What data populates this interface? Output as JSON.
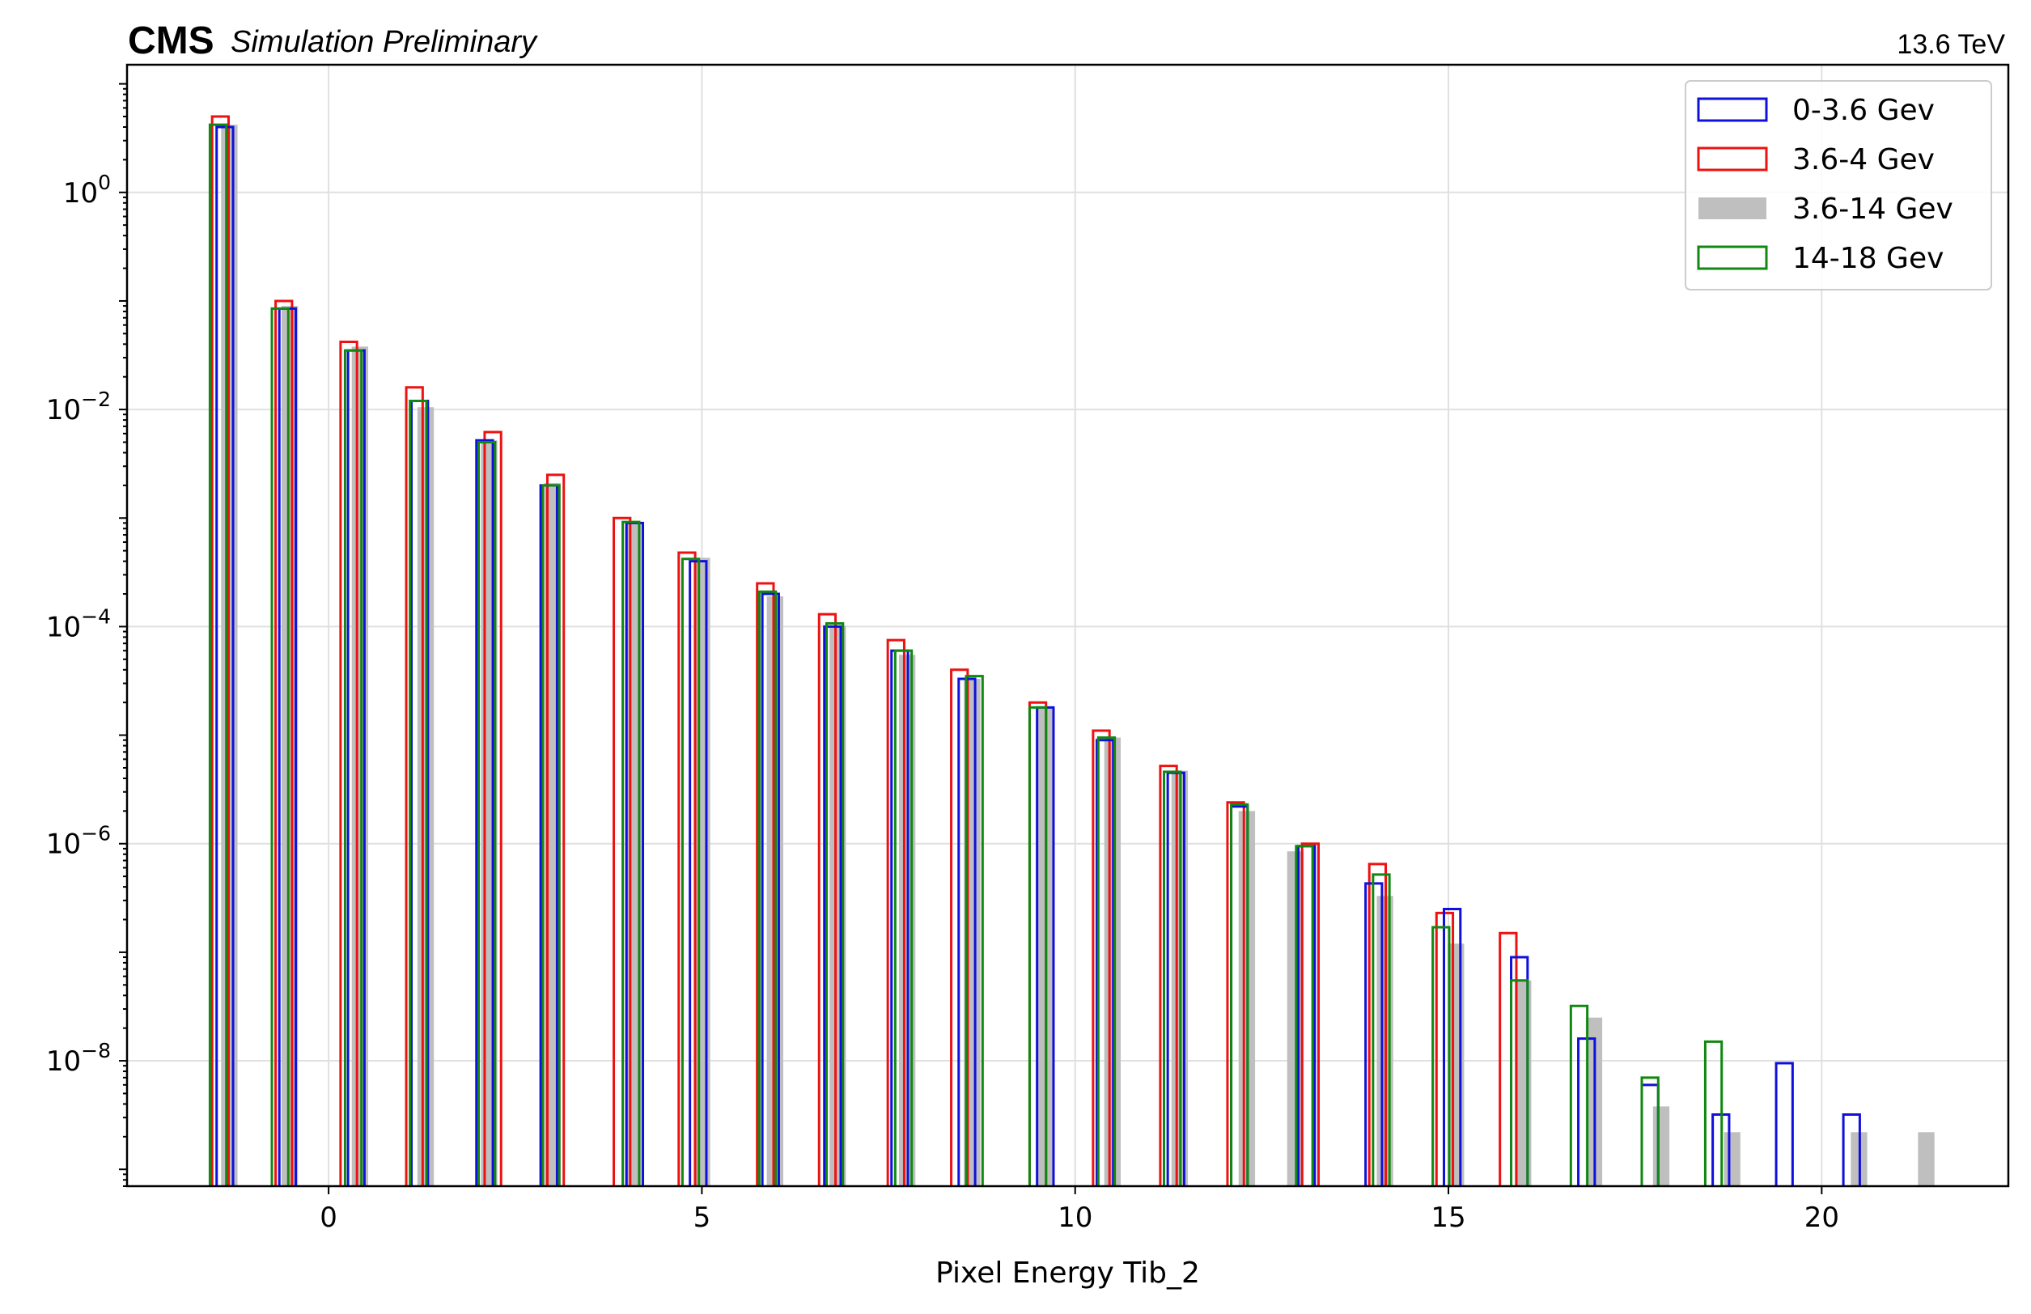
{
  "header": {
    "experiment": "CMS",
    "status": "Simulation Preliminary",
    "energy": "13.6 TeV"
  },
  "chart_data": {
    "type": "bar",
    "xlabel": "Pixel Energy Tib_2",
    "ylabel": "",
    "xlim": [
      -2.7,
      22.5
    ],
    "ylim": [
      7e-10,
      15
    ],
    "yscale": "log",
    "xticks": [
      0,
      5,
      10,
      15,
      20
    ],
    "xtick_labels": [
      "0",
      "5",
      "10",
      "15",
      "20"
    ],
    "yticks": [
      1,
      0.01,
      0.0001,
      1e-06,
      1e-08
    ],
    "ytick_exponents": [
      "0",
      "−2",
      "−4",
      "−6",
      "−8"
    ],
    "ytick_base": "10",
    "grid": true,
    "legend_position": "top-right",
    "series": [
      {
        "name": "0-3.6 Gev",
        "style": "step",
        "color": "#1010dd",
        "x": [
          -1.39,
          -0.55,
          0.37,
          1.22,
          2.09,
          2.95,
          4.1,
          4.95,
          5.92,
          6.75,
          7.65,
          8.55,
          9.6,
          10.4,
          11.35,
          12.2,
          13.1,
          14.0,
          15.05,
          15.95,
          16.85,
          17.7,
          18.65,
          19.5,
          20.4
        ],
        "values": [
          4.0,
          0.085,
          0.035,
          0.012,
          0.0052,
          0.002,
          0.0009,
          0.0004,
          0.0002,
          0.0001,
          6e-05,
          3.3e-05,
          1.8e-05,
          9e-06,
          4.5e-06,
          2.2e-06,
          9.5e-07,
          4.3e-07,
          2.5e-07,
          9e-08,
          1.6e-08,
          6e-09,
          3.2e-09,
          9.5e-09,
          3.2e-09
        ]
      },
      {
        "name": "3.6-4 Gev",
        "style": "step",
        "color": "#ee1111",
        "x": [
          -1.45,
          -0.6,
          0.27,
          1.15,
          2.2,
          3.04,
          3.93,
          4.8,
          5.85,
          6.68,
          7.6,
          8.45,
          9.5,
          10.35,
          11.25,
          12.15,
          13.15,
          14.05,
          14.95,
          15.8
        ],
        "values": [
          5.0,
          0.1,
          0.042,
          0.016,
          0.0062,
          0.0025,
          0.001,
          0.00048,
          0.00025,
          0.00013,
          7.5e-05,
          4e-05,
          2e-05,
          1.1e-05,
          5.2e-06,
          2.4e-06,
          1e-06,
          6.5e-07,
          2.3e-07,
          1.5e-07
        ]
      },
      {
        "name": "3.6-14 Gev",
        "style": "filled",
        "color": "#bfbfbf",
        "x": [
          -1.33,
          -0.52,
          0.42,
          1.3,
          2.15,
          3.0,
          4.08,
          5.0,
          5.98,
          6.82,
          7.75,
          8.62,
          9.6,
          10.5,
          11.4,
          12.3,
          12.95,
          14.15,
          15.1,
          16.0,
          16.95,
          17.85,
          18.8,
          20.5,
          21.4
        ],
        "values": [
          4.2,
          0.09,
          0.038,
          0.0105,
          0.0052,
          0.0021,
          0.00092,
          0.00043,
          0.00019,
          0.000102,
          5.5e-05,
          3.3e-05,
          1.8e-05,
          9.5e-06,
          4.7e-06,
          2e-06,
          8.5e-07,
          3.3e-07,
          1.2e-07,
          5.5e-08,
          2.5e-08,
          3.8e-09,
          2.2e-09,
          2.2e-09,
          2.2e-09
        ]
      },
      {
        "name": "14-18 Gev",
        "style": "step",
        "color": "#118811",
        "x": [
          -1.48,
          -0.65,
          0.33,
          1.2,
          2.12,
          2.98,
          4.05,
          4.85,
          5.88,
          6.78,
          7.7,
          8.65,
          9.5,
          10.42,
          11.3,
          12.2,
          13.07,
          14.1,
          14.9,
          15.95,
          16.75,
          17.7,
          18.55
        ],
        "values": [
          4.2,
          0.085,
          0.035,
          0.012,
          0.005,
          0.002,
          0.00092,
          0.00042,
          0.00021,
          0.000107,
          6e-05,
          3.5e-05,
          1.8e-05,
          9.5e-06,
          4.6e-06,
          2.3e-06,
          9.5e-07,
          5.2e-07,
          1.7e-07,
          5.5e-08,
          3.2e-08,
          7e-09,
          1.5e-08
        ]
      }
    ]
  }
}
